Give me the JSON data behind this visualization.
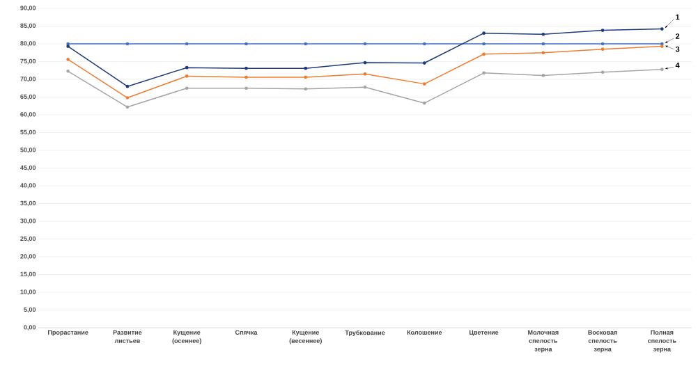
{
  "chart_data": {
    "type": "line",
    "categories": [
      "Прорастание",
      "Развитие листьев",
      "Кущение (осеннее)",
      "Спячка",
      "Кущение (весеннее)",
      "Трубкование",
      "Колошение",
      "Цветение",
      "Молочная спелость зерна",
      "Восковая спелость зерна",
      "Полная спелость зерна"
    ],
    "series": [
      {
        "color": "#4472c4",
        "values": [
          80,
          80,
          80,
          80,
          80,
          80,
          80,
          80,
          80,
          80,
          80
        ]
      },
      {
        "color": "#1f3a7a",
        "values": [
          79.3,
          68.0,
          73.3,
          73.1,
          73.1,
          74.7,
          74.6,
          83.0,
          82.7,
          83.8,
          84.2
        ]
      },
      {
        "color": "#ed7d31",
        "values": [
          75.6,
          64.8,
          70.9,
          70.6,
          70.6,
          71.5,
          68.7,
          77.1,
          77.5,
          78.5,
          79.3
        ]
      },
      {
        "color": "#a5a5a5",
        "values": [
          72.3,
          62.2,
          67.5,
          67.5,
          67.3,
          67.8,
          63.3,
          71.8,
          71.1,
          72.0,
          72.8
        ]
      }
    ],
    "ylim": [
      0,
      90
    ],
    "yticks": [
      {
        "value": 0,
        "label": "0,00"
      },
      {
        "value": 5,
        "label": "5,00"
      },
      {
        "value": 10,
        "label": "10,00"
      },
      {
        "value": 15,
        "label": "15,00"
      },
      {
        "value": 20,
        "label": "20,00"
      },
      {
        "value": 25,
        "label": "25,00"
      },
      {
        "value": 30,
        "label": "30,00"
      },
      {
        "value": 35,
        "label": "35,00"
      },
      {
        "value": 40,
        "label": "40,00"
      },
      {
        "value": 45,
        "label": "45,00"
      },
      {
        "value": 50,
        "label": "50,00"
      },
      {
        "value": 55,
        "label": "55,00"
      },
      {
        "value": 60,
        "label": "60,00"
      },
      {
        "value": 65,
        "label": "65,00"
      },
      {
        "value": 70,
        "label": "70,00"
      },
      {
        "value": 75,
        "label": "75,00"
      },
      {
        "value": 80,
        "label": "80,00"
      },
      {
        "value": 85,
        "label": "85,00"
      },
      {
        "value": 90,
        "label": "90,00"
      }
    ],
    "grid": "y",
    "marker": "circle",
    "line_style": "solid",
    "annotations": [
      {
        "text": "1",
        "x": "Полная спелость зерна",
        "y": 84.2
      },
      {
        "text": "2",
        "x": "Полная спелость зерна",
        "y": 80
      },
      {
        "text": "3",
        "x": "Полная спелость зерна",
        "y": 79.3
      },
      {
        "text": "4",
        "x": "Полная спелость зерна",
        "y": 72.8
      }
    ]
  }
}
